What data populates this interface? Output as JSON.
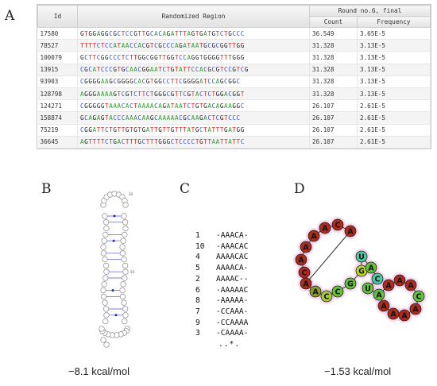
{
  "panel_labels": {
    "a": "A",
    "b": "B",
    "c": "C",
    "d": "D"
  },
  "table": {
    "headers": {
      "id": "Id",
      "region": "Randomized Region",
      "round": "Round no.6, final",
      "count": "Count",
      "frequency": "Frequency"
    },
    "rows": [
      {
        "id": "17580",
        "seq": "GTGGAGGCGCTCCGTTGCACAGATTTAGTGATGTCTGCCC",
        "count": "36.549",
        "freq": "3.65E-5"
      },
      {
        "id": "78527",
        "seq": "TTTTCTCCATAACCACGTCGCCCAGATAATGCGCGGTTGG",
        "count": "31.328",
        "freq": "3.13E-5"
      },
      {
        "id": "100079",
        "seq": "GCTTCGGCCCTCTTGGCGGTTGGTCCAGGTGGGGTTTGGG",
        "count": "31.328",
        "freq": "3.13E-5"
      },
      {
        "id": "13915",
        "seq": "CGCATCCCGTGCAACGGAATCTGTATTCCACGCGTCCGTCG",
        "count": "31.328",
        "freq": "3.13E-5"
      },
      {
        "id": "93903",
        "seq": "CGGGGAAGCGGGGCACGTGGCCTTCGGGGATCCAGCGGC",
        "count": "31.328",
        "freq": "3.13E-5"
      },
      {
        "id": "128798",
        "seq": "AGGGAAAAGTCGTCTTCTGGGCGTTCGTACTCTGGACGGT",
        "count": "31.328",
        "freq": "3.13E-5"
      },
      {
        "id": "124271",
        "seq": "CGGGGGTAAACACTAAAACAGATAATCTGTGACAGAAGGC",
        "count": "26.107",
        "freq": "2.61E-5"
      },
      {
        "id": "158874",
        "seq": "GCAGAGTACCCAAACAAGCAAAAACGCAAGACTCGTCCC",
        "count": "26.107",
        "freq": "2.61E-5"
      },
      {
        "id": "75219",
        "seq": "CGGATTCTGTTGTGTGATTGTTGTTTATGCTATTTGATGG",
        "count": "26.107",
        "freq": "2.61E-5"
      },
      {
        "id": "36645",
        "seq": "AGTTTTCTGACTTTGCTTTGGGCTCCCCTGTTAATTATTC",
        "count": "26.107",
        "freq": "2.61E-5"
      }
    ]
  },
  "alignment": {
    "rows": [
      {
        "num": "1",
        "seq": "-AAACA-"
      },
      {
        "num": "10",
        "seq": "-AAACAC"
      },
      {
        "num": "4",
        "seq": "AAAACAC"
      },
      {
        "num": "5",
        "seq": "AAAACA-"
      },
      {
        "num": "2",
        "seq": "AAAAC--"
      },
      {
        "num": "6",
        "seq": "-AAAAAC"
      },
      {
        "num": "8",
        "seq": "-AAAAA-"
      },
      {
        "num": "7",
        "seq": "-CCAAA-"
      },
      {
        "num": "9",
        "seq": "-CCAAAA"
      },
      {
        "num": "3",
        "seq": "-CAAAA-"
      }
    ],
    "consensus": "..*."
  },
  "energies": {
    "b": "−8.1 kcal/mol",
    "d": "−1.53 kcal/mol"
  },
  "structure_d_bases": [
    "C",
    "A",
    "A",
    "A",
    "A",
    "C",
    "A",
    "A",
    "A",
    "C",
    "C",
    "G",
    "G",
    "U",
    "A",
    "C",
    "U",
    "A",
    "A",
    "A",
    "A",
    "C",
    "A",
    "A",
    "A",
    "A"
  ],
  "colors": {
    "A": "#2f9e2f",
    "T": "#d62727",
    "G": "#222222",
    "C": "#3a50d4",
    "fold_red": "#b02a1a",
    "fold_green": "#62c23a",
    "fold_halo": "#e89ad8"
  }
}
